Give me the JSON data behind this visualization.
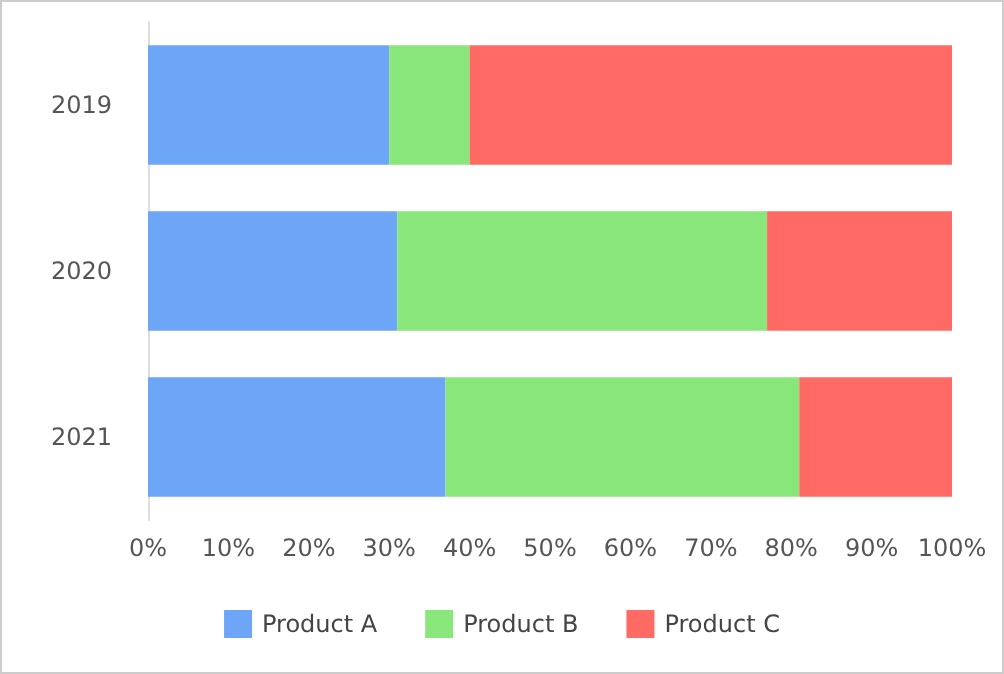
{
  "chart_data": {
    "type": "bar",
    "orientation": "horizontal",
    "stacked": true,
    "categories": [
      "2019",
      "2020",
      "2021"
    ],
    "series": [
      {
        "name": "Product A",
        "color": "#6ea6f7",
        "values": [
          30,
          31,
          37
        ]
      },
      {
        "name": "Product B",
        "color": "#88e67a",
        "values": [
          10,
          46,
          44
        ]
      },
      {
        "name": "Product C",
        "color": "#ff6a64",
        "values": [
          60,
          23,
          19
        ]
      }
    ],
    "xlim": [
      0,
      100
    ],
    "xticks": [
      {
        "value": 0,
        "label": "0%"
      },
      {
        "value": 10,
        "label": "10%"
      },
      {
        "value": 20,
        "label": "20%"
      },
      {
        "value": 30,
        "label": "30%"
      },
      {
        "value": 40,
        "label": "40%"
      },
      {
        "value": 50,
        "label": "50%"
      },
      {
        "value": 60,
        "label": "60%"
      },
      {
        "value": 70,
        "label": "70%"
      },
      {
        "value": 80,
        "label": "80%"
      },
      {
        "value": 90,
        "label": "90%"
      },
      {
        "value": 100,
        "label": "100%"
      }
    ],
    "grid": false,
    "legend": "bottom"
  }
}
